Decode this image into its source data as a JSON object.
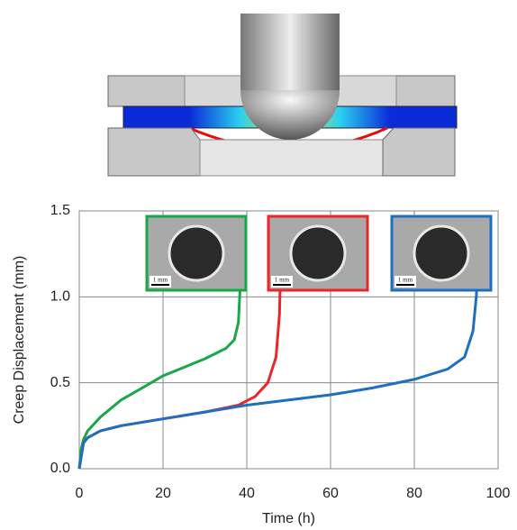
{
  "chart_data": {
    "type": "line",
    "x_label": "Time (h)",
    "y_label": "Creep Displacement (mm)",
    "xlim": [
      0,
      100
    ],
    "xticks": [
      0,
      20,
      40,
      60,
      80,
      100
    ],
    "ylim": [
      0,
      1.5
    ],
    "yticks": [
      {
        "value": 0,
        "label": "0.0"
      },
      {
        "value": 0.5,
        "label": "0.5"
      },
      {
        "value": 1,
        "label": "1.0"
      },
      {
        "value": 1.5,
        "label": "1.5"
      }
    ],
    "grid": true,
    "series": [
      {
        "color": "#1aa64a",
        "x": [
          0,
          0.5,
          1,
          2,
          5,
          10,
          15,
          20,
          25,
          30,
          35,
          37,
          38,
          38.3,
          38.5
        ],
        "values": [
          0,
          0.12,
          0.17,
          0.22,
          0.3,
          0.4,
          0.47,
          0.54,
          0.59,
          0.64,
          0.7,
          0.75,
          0.85,
          1.0,
          1.1
        ]
      },
      {
        "color": "#e8262b",
        "x": [
          0,
          1,
          2,
          5,
          10,
          20,
          30,
          38,
          42,
          45,
          47,
          47.8,
          48
        ],
        "values": [
          0,
          0.15,
          0.18,
          0.22,
          0.25,
          0.29,
          0.33,
          0.37,
          0.42,
          0.5,
          0.65,
          0.9,
          1.1
        ]
      },
      {
        "color": "#1f6fc1",
        "x": [
          0,
          1,
          2,
          5,
          10,
          20,
          30,
          40,
          50,
          60,
          70,
          80,
          88,
          92,
          94,
          94.8,
          95
        ],
        "values": [
          0,
          0.15,
          0.18,
          0.22,
          0.25,
          0.29,
          0.33,
          0.37,
          0.4,
          0.43,
          0.47,
          0.52,
          0.58,
          0.65,
          0.8,
          1.0,
          1.1
        ]
      }
    ],
    "inset_labels": [
      "1 mm",
      "1 mm",
      "1 mm"
    ]
  }
}
